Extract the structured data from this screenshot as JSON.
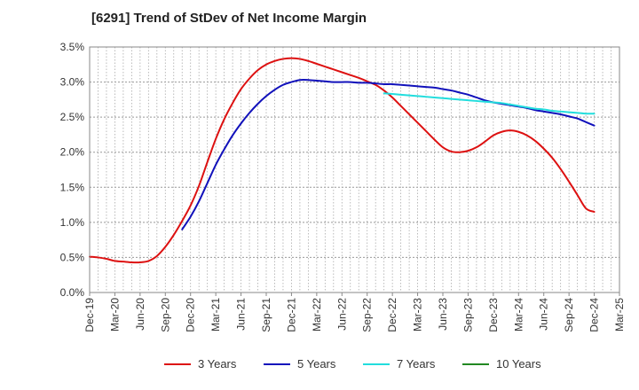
{
  "chart_data": {
    "type": "line",
    "title": "[6291]  Trend of StDev of Net Income Margin",
    "xlabel": "",
    "ylabel": "",
    "ylim": [
      0,
      3.5
    ],
    "y_ticks": [
      "0.0%",
      "0.5%",
      "1.0%",
      "1.5%",
      "2.0%",
      "2.5%",
      "3.0%",
      "3.5%"
    ],
    "categories": [
      "Dec-19",
      "Mar-20",
      "Jun-20",
      "Sep-20",
      "Dec-20",
      "Mar-21",
      "Jun-21",
      "Sep-21",
      "Dec-21",
      "Mar-22",
      "Jun-22",
      "Sep-22",
      "Dec-22",
      "Mar-23",
      "Jun-23",
      "Sep-23",
      "Dec-23",
      "Mar-24",
      "Jun-24",
      "Sep-24",
      "Dec-24",
      "Mar-25"
    ],
    "grid": true,
    "legend_position": "bottom",
    "series": [
      {
        "name": "3 Years",
        "color": "#dd1111",
        "points": [
          [
            "Dec-19",
            0.51
          ],
          [
            "Jan-20",
            0.5
          ],
          [
            "Feb-20",
            0.48
          ],
          [
            "Mar-20",
            0.45
          ],
          [
            "Apr-20",
            0.44
          ],
          [
            "May-20",
            0.43
          ],
          [
            "Jun-20",
            0.43
          ],
          [
            "Jul-20",
            0.45
          ],
          [
            "Aug-20",
            0.52
          ],
          [
            "Sep-20",
            0.65
          ],
          [
            "Oct-20",
            0.82
          ],
          [
            "Nov-20",
            1.02
          ],
          [
            "Dec-20",
            1.24
          ],
          [
            "Jan-21",
            1.52
          ],
          [
            "Feb-21",
            1.86
          ],
          [
            "Mar-21",
            2.19
          ],
          [
            "Apr-21",
            2.47
          ],
          [
            "May-21",
            2.7
          ],
          [
            "Jun-21",
            2.9
          ],
          [
            "Jul-21",
            3.05
          ],
          [
            "Aug-21",
            3.17
          ],
          [
            "Sep-21",
            3.25
          ],
          [
            "Oct-21",
            3.3
          ],
          [
            "Nov-21",
            3.33
          ],
          [
            "Dec-21",
            3.34
          ],
          [
            "Jan-22",
            3.33
          ],
          [
            "Feb-22",
            3.3
          ],
          [
            "Mar-22",
            3.26
          ],
          [
            "Apr-22",
            3.22
          ],
          [
            "May-22",
            3.18
          ],
          [
            "Jun-22",
            3.14
          ],
          [
            "Jul-22",
            3.1
          ],
          [
            "Aug-22",
            3.06
          ],
          [
            "Sep-22",
            3.01
          ],
          [
            "Oct-22",
            2.96
          ],
          [
            "Nov-22",
            2.88
          ],
          [
            "Dec-22",
            2.78
          ],
          [
            "Jan-23",
            2.66
          ],
          [
            "Feb-23",
            2.54
          ],
          [
            "Mar-23",
            2.42
          ],
          [
            "Apr-23",
            2.3
          ],
          [
            "May-23",
            2.18
          ],
          [
            "Jun-23",
            2.07
          ],
          [
            "Jul-23",
            2.01
          ],
          [
            "Aug-23",
            2.0
          ],
          [
            "Sep-23",
            2.02
          ],
          [
            "Oct-23",
            2.07
          ],
          [
            "Nov-23",
            2.15
          ],
          [
            "Dec-23",
            2.24
          ],
          [
            "Jan-24",
            2.29
          ],
          [
            "Feb-24",
            2.31
          ],
          [
            "Mar-24",
            2.29
          ],
          [
            "Apr-24",
            2.24
          ],
          [
            "May-24",
            2.16
          ],
          [
            "Jun-24",
            2.05
          ],
          [
            "Jul-24",
            1.92
          ],
          [
            "Aug-24",
            1.76
          ],
          [
            "Sep-24",
            1.58
          ],
          [
            "Oct-24",
            1.39
          ],
          [
            "Nov-24",
            1.2
          ],
          [
            "Dec-24",
            1.15
          ]
        ]
      },
      {
        "name": "5 Years",
        "color": "#1111bb",
        "points": [
          [
            "Nov-20",
            0.9
          ],
          [
            "Dec-20",
            1.08
          ],
          [
            "Jan-21",
            1.3
          ],
          [
            "Feb-21",
            1.56
          ],
          [
            "Mar-21",
            1.82
          ],
          [
            "Apr-21",
            2.04
          ],
          [
            "May-21",
            2.24
          ],
          [
            "Jun-21",
            2.41
          ],
          [
            "Jul-21",
            2.56
          ],
          [
            "Aug-21",
            2.69
          ],
          [
            "Sep-21",
            2.8
          ],
          [
            "Oct-21",
            2.89
          ],
          [
            "Nov-21",
            2.96
          ],
          [
            "Dec-21",
            3.0
          ],
          [
            "Jan-22",
            3.03
          ],
          [
            "Feb-22",
            3.03
          ],
          [
            "Mar-22",
            3.02
          ],
          [
            "Apr-22",
            3.01
          ],
          [
            "May-22",
            3.0
          ],
          [
            "Jun-22",
            3.0
          ],
          [
            "Jul-22",
            3.0
          ],
          [
            "Aug-22",
            2.99
          ],
          [
            "Sep-22",
            2.99
          ],
          [
            "Oct-22",
            2.98
          ],
          [
            "Nov-22",
            2.97
          ],
          [
            "Dec-22",
            2.97
          ],
          [
            "Jan-23",
            2.96
          ],
          [
            "Feb-23",
            2.95
          ],
          [
            "Mar-23",
            2.94
          ],
          [
            "Apr-23",
            2.93
          ],
          [
            "May-23",
            2.92
          ],
          [
            "Jun-23",
            2.9
          ],
          [
            "Jul-23",
            2.88
          ],
          [
            "Aug-23",
            2.85
          ],
          [
            "Sep-23",
            2.82
          ],
          [
            "Oct-23",
            2.78
          ],
          [
            "Nov-23",
            2.74
          ],
          [
            "Dec-23",
            2.71
          ],
          [
            "Jan-24",
            2.69
          ],
          [
            "Feb-24",
            2.67
          ],
          [
            "Mar-24",
            2.65
          ],
          [
            "Apr-24",
            2.63
          ],
          [
            "May-24",
            2.6
          ],
          [
            "Jun-24",
            2.58
          ],
          [
            "Jul-24",
            2.56
          ],
          [
            "Aug-24",
            2.54
          ],
          [
            "Sep-24",
            2.51
          ],
          [
            "Oct-24",
            2.48
          ],
          [
            "Nov-24",
            2.43
          ],
          [
            "Dec-24",
            2.38
          ]
        ]
      },
      {
        "name": "7 Years",
        "color": "#22dddd",
        "points": [
          [
            "Nov-22",
            2.84
          ],
          [
            "Dec-22",
            2.83
          ],
          [
            "Jan-23",
            2.82
          ],
          [
            "Feb-23",
            2.81
          ],
          [
            "Mar-23",
            2.8
          ],
          [
            "Apr-23",
            2.79
          ],
          [
            "May-23",
            2.78
          ],
          [
            "Jun-23",
            2.77
          ],
          [
            "Jul-23",
            2.76
          ],
          [
            "Aug-23",
            2.75
          ],
          [
            "Sep-23",
            2.74
          ],
          [
            "Oct-23",
            2.73
          ],
          [
            "Nov-23",
            2.72
          ],
          [
            "Dec-23",
            2.71
          ],
          [
            "Jan-24",
            2.7
          ],
          [
            "Feb-24",
            2.68
          ],
          [
            "Mar-24",
            2.66
          ],
          [
            "Apr-24",
            2.64
          ],
          [
            "May-24",
            2.62
          ],
          [
            "Jun-24",
            2.61
          ],
          [
            "Jul-24",
            2.59
          ],
          [
            "Aug-24",
            2.58
          ],
          [
            "Sep-24",
            2.57
          ],
          [
            "Oct-24",
            2.56
          ],
          [
            "Nov-24",
            2.55
          ],
          [
            "Dec-24",
            2.55
          ]
        ]
      },
      {
        "name": "10 Years",
        "color": "#228822",
        "points": []
      }
    ]
  }
}
